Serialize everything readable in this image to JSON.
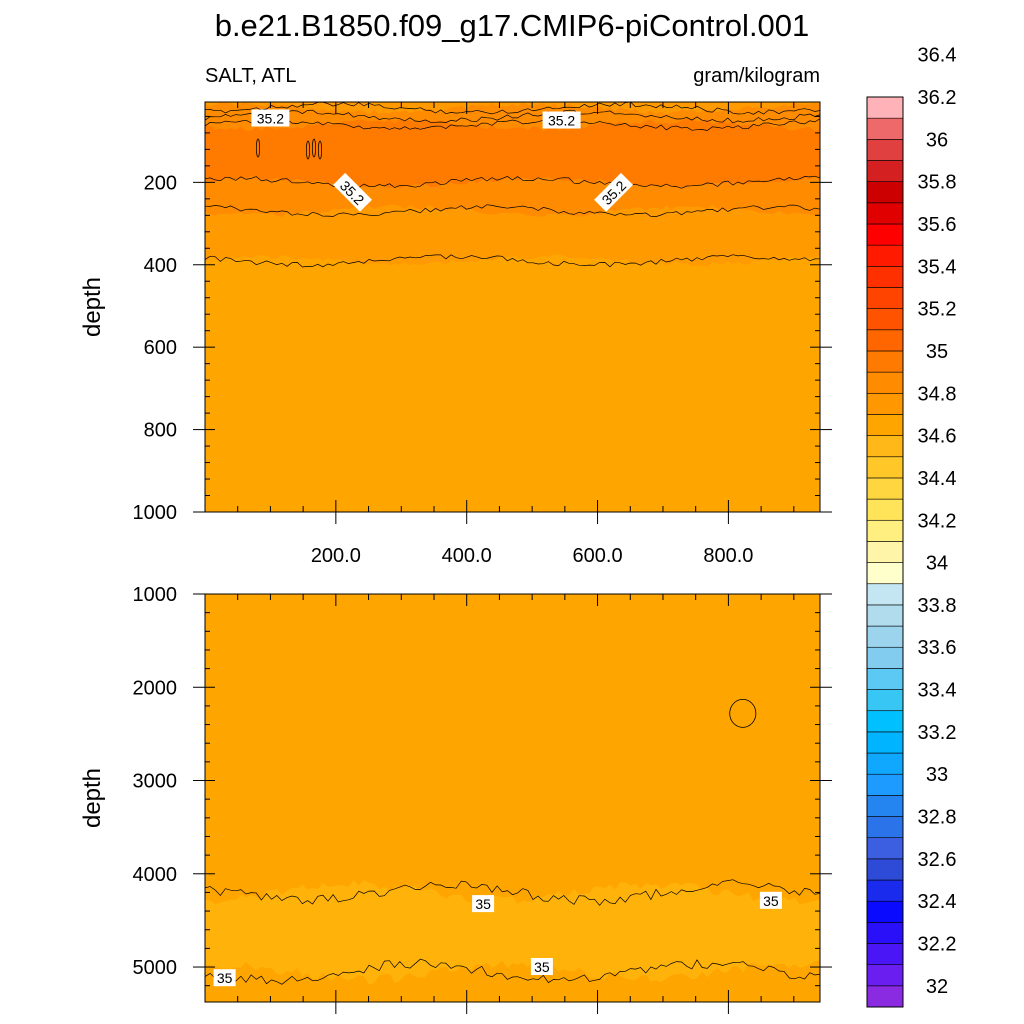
{
  "figure": {
    "title": "b.e21.B1850.f09_g17.CMIP6-piControl.001",
    "subtitle_left": "SALT, ATL",
    "subtitle_right": "gram/kilogram"
  },
  "colors": {
    "background_field": "#FFA500",
    "contour_line": "#000000"
  },
  "chart_data": [
    {
      "type": "heatmap",
      "title": "",
      "xlabel": "",
      "ylabel": "depth",
      "xlim": [
        0,
        940
      ],
      "ylim": [
        1000,
        5
      ],
      "y_reversed": true,
      "grid": false,
      "xticks": [
        200,
        400,
        600,
        800
      ],
      "xtick_labels": [
        "200.0",
        "400.0",
        "600.0",
        "800.0"
      ],
      "yticks": [
        200,
        400,
        600,
        800,
        1000
      ],
      "ytick_labels": [
        "200",
        "400",
        "600",
        "800",
        "1000"
      ],
      "layers": [
        {
          "name": "",
          "value": 35.1,
          "color": "#FF9A00",
          "top": 5,
          "bottom": 20
        },
        {
          "name": "",
          "value": 35.2,
          "color": "#FF8C00",
          "top": 20,
          "bottom": 60
        },
        {
          "name": "",
          "value": 35.3,
          "color": "#FF7B00",
          "top": 60,
          "bottom": 200
        },
        {
          "name": "",
          "value": 35.2,
          "color": "#FF8C00",
          "top": 200,
          "bottom": 270
        },
        {
          "name": "",
          "value": 35.1,
          "color": "#FF9A00",
          "top": 270,
          "bottom": 390
        },
        {
          "name": "",
          "value": 35.0,
          "color": "#FFA500",
          "top": 390,
          "bottom": 1000
        }
      ],
      "contour_depths": [
        20,
        40,
        60,
        200,
        270,
        390
      ],
      "contour_labels": [
        {
          "text": "35.2",
          "x": 100,
          "y": 45,
          "angle": 0
        },
        {
          "text": "35.2",
          "x": 545,
          "y": 50,
          "angle": 0
        },
        {
          "text": "35.2",
          "x": 225,
          "y": 225,
          "angle": 45
        },
        {
          "text": "35.2",
          "x": 625,
          "y": 225,
          "angle": -45
        }
      ]
    },
    {
      "type": "heatmap",
      "title": "",
      "xlabel": "",
      "ylabel": "depth",
      "xlim": [
        0,
        940
      ],
      "ylim": [
        5375,
        1000
      ],
      "y_reversed": true,
      "grid": false,
      "xticks": [
        200,
        400,
        600,
        800
      ],
      "xtick_labels": [],
      "yticks": [
        1000,
        2000,
        3000,
        4000,
        5000
      ],
      "ytick_labels": [
        "1000",
        "2000",
        "3000",
        "4000",
        "5000"
      ],
      "layers": [
        {
          "name": "",
          "value": 35.0,
          "color": "#FFA500",
          "top": 1000,
          "bottom": 4200
        },
        {
          "name": "",
          "value": 34.9,
          "color": "#FFB30A",
          "top": 4200,
          "bottom": 5050
        },
        {
          "name": "",
          "value": 35.0,
          "color": "#FFA500",
          "top": 5050,
          "bottom": 5375
        }
      ],
      "contour_depths": [
        4200,
        5050
      ],
      "contour_labels": [
        {
          "text": "35",
          "x": 425,
          "y": 4325,
          "angle": 0
        },
        {
          "text": "35",
          "x": 865,
          "y": 4290,
          "angle": 0
        },
        {
          "text": "35",
          "x": 30,
          "y": 5120,
          "angle": 0
        },
        {
          "text": "35",
          "x": 515,
          "y": 5000,
          "angle": 0
        }
      ],
      "closed_contours": [
        {
          "x": 822,
          "y": 2280,
          "rx": 20,
          "ry": 150
        }
      ]
    }
  ],
  "colorbar": {
    "levels": [
      "32",
      "32.2",
      "32.4",
      "32.6",
      "32.8",
      "33",
      "33.2",
      "33.4",
      "33.6",
      "33.8",
      "34",
      "34.2",
      "34.4",
      "34.6",
      "34.8",
      "35",
      "35.2",
      "35.4",
      "35.6",
      "35.8",
      "36",
      "36.2",
      "36.4"
    ],
    "colors": [
      "#8A2BE2",
      "#6A1FF0",
      "#4B16F5",
      "#2A10F8",
      "#0A0AFF",
      "#1A2BEE",
      "#2E4BD8",
      "#3C5EE0",
      "#2A73E8",
      "#2585F0",
      "#1E9BFF",
      "#10A8FF",
      "#00B4FF",
      "#00C0FF",
      "#38C6F4",
      "#5CC8F4",
      "#82CCF0",
      "#9CD4EE",
      "#B0DCEE",
      "#C4E6F2",
      "#FFFFCC",
      "#FFF5A8",
      "#FFEE80",
      "#FFE45A",
      "#FFD640",
      "#FFC828",
      "#FFB818",
      "#FFA500",
      "#FF9800",
      "#FF8C00",
      "#FF7A00",
      "#FF6600",
      "#FF5300",
      "#FF4400",
      "#FF3000",
      "#FF1A00",
      "#FF0000",
      "#E00000",
      "#CC0000",
      "#D42020",
      "#E04040",
      "#EE6A6A",
      "#FFB3B8"
    ]
  }
}
